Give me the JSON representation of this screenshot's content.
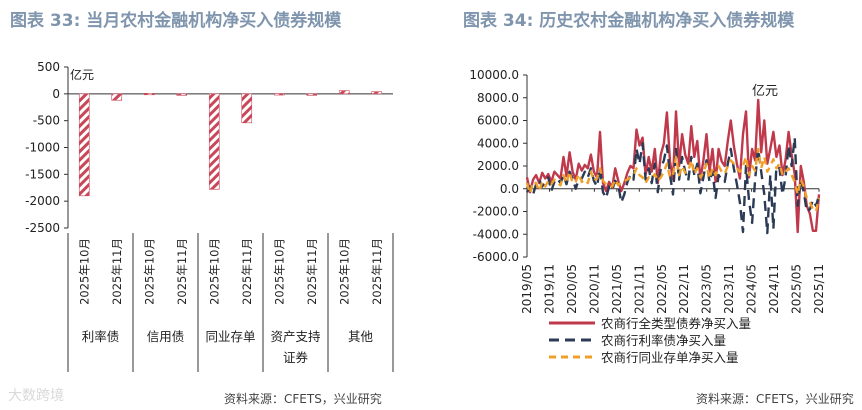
{
  "watermark": "大数跨境",
  "chart_data": [
    {
      "type": "bar",
      "title": "图表 33: 当月农村金融机构净买入债券规模",
      "unit_label": "亿元",
      "ylim": [
        -2500,
        500
      ],
      "yticks": [
        "500",
        "0",
        "-500",
        "-1000",
        "-1500",
        "-2000",
        "-2500"
      ],
      "categories": [
        "2025年10月",
        "2025年11月",
        "2025年10月",
        "2025年11月",
        "2025年10月",
        "2025年11月",
        "2025年10月",
        "2025年11月",
        "2025年10月",
        "2025年11月"
      ],
      "groups": [
        "利率债",
        "信用债",
        "同业存单",
        "资产支持证券",
        "其他"
      ],
      "values": [
        -1900,
        -120,
        10,
        -20,
        -1780,
        -540,
        5,
        0,
        60,
        40
      ],
      "bar_color": "#c8485a",
      "source": "资料来源：CFETS，兴业研究"
    },
    {
      "type": "line",
      "title": "图表 34: 历史农村金融机构净买入债券规模",
      "unit_label": "亿元",
      "ylim": [
        -6000,
        10000
      ],
      "yticks": [
        "10000.0",
        "8000.0",
        "6000.0",
        "4000.0",
        "2000.0",
        "0.0",
        "-2000.0",
        "-4000.0",
        "-6000.0"
      ],
      "x_labels": [
        "2019/05",
        "2019/11",
        "2020/05",
        "2020/11",
        "2021/05",
        "2021/11",
        "2022/05",
        "2022/11",
        "2023/05",
        "2023/11",
        "2024/05",
        "2024/11",
        "2025/05",
        "2025/11"
      ],
      "series": [
        {
          "name": "农商行全类型债券净买入量",
          "color": "#c0394b",
          "dash": "",
          "values": [
            1000,
            -300,
            800,
            1200,
            500,
            1400,
            900,
            1300,
            600,
            1500,
            1200,
            900,
            2800,
            1100,
            3200,
            1500,
            800,
            2200,
            1600,
            2100,
            1800,
            3000,
            1500,
            1000,
            5000,
            500,
            -200,
            600,
            100,
            1800,
            700,
            -200,
            500,
            1400,
            2000,
            1800,
            5200,
            3800,
            4500,
            1200,
            2800,
            1500,
            3500,
            500,
            3000,
            4000,
            6700,
            2400,
            800,
            6800,
            2000,
            4800,
            3000,
            2200,
            5500,
            2800,
            4200,
            800,
            2500,
            4800,
            1500,
            3500,
            600,
            3500,
            2400,
            2000,
            4200,
            6000,
            3800,
            2200,
            900,
            4800,
            6800,
            1000,
            3500,
            2500,
            7800,
            3200,
            6000,
            2200,
            3500,
            5000,
            2800,
            3800,
            1200,
            2500,
            5000,
            3000,
            1300,
            -3800,
            2000,
            600,
            -1500,
            -2200,
            -3700,
            -3700,
            -500
          ]
        },
        {
          "name": "农商行利率债净买入量",
          "color": "#2b3a55",
          "dash": "10,6",
          "values": [
            -300,
            200,
            -500,
            400,
            800,
            200,
            700,
            1000,
            -200,
            600,
            900,
            500,
            1200,
            400,
            1500,
            900,
            0,
            800,
            900,
            1500,
            1000,
            1800,
            700,
            200,
            1800,
            -300,
            -800,
            200,
            -100,
            700,
            300,
            -1200,
            -500,
            600,
            1200,
            800,
            3500,
            2200,
            4000,
            800,
            1800,
            500,
            2200,
            -300,
            1800,
            2500,
            3800,
            1200,
            -500,
            3500,
            800,
            2800,
            1500,
            700,
            2800,
            1200,
            2200,
            -400,
            1000,
            2500,
            600,
            1500,
            -800,
            1200,
            800,
            600,
            2200,
            3500,
            1800,
            400,
            -1200,
            -3800,
            2000,
            -1000,
            -3000,
            800,
            3500,
            1500,
            -500,
            -3900,
            1200,
            -3500,
            2000,
            1800,
            -500,
            1000,
            3800,
            2000,
            4500,
            -1500,
            800,
            -300,
            -2000,
            -1800,
            -1000,
            -1500,
            -600
          ]
        },
        {
          "name": "农商行同业存单净买入量",
          "color": "#f0a02a",
          "dash": "7,5",
          "values": [
            500,
            -400,
            600,
            500,
            -200,
            600,
            200,
            700,
            400,
            800,
            500,
            300,
            1200,
            500,
            1500,
            500,
            600,
            1300,
            600,
            800,
            500,
            1500,
            700,
            900,
            1800,
            700,
            400,
            400,
            200,
            800,
            300,
            600,
            700,
            800,
            1000,
            1200,
            1800,
            1200,
            1000,
            500,
            1000,
            900,
            1300,
            700,
            1000,
            1500,
            2200,
            1000,
            1200,
            2800,
            1200,
            2000,
            1400,
            1500,
            2500,
            1300,
            1800,
            1000,
            1400,
            2200,
            900,
            1800,
            1200,
            2000,
            1500,
            1300,
            2000,
            2500,
            2200,
            1800,
            1500,
            2000,
            2800,
            1200,
            2000,
            1600,
            3500,
            1800,
            2800,
            1500,
            2000,
            2600,
            1800,
            2200,
            1200,
            1500,
            1800,
            1200,
            600,
            -500,
            800,
            200,
            -800,
            -1200,
            -1800,
            -2000,
            -800
          ]
        }
      ],
      "source": "资料来源：CFETS，兴业研究"
    }
  ]
}
